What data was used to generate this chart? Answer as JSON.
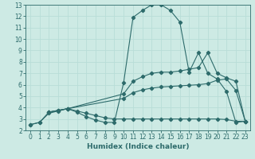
{
  "xlabel": "Humidex (Indice chaleur)",
  "ylabel": "",
  "bg_color": "#cdeae4",
  "line_color": "#2d6b6b",
  "grid_color": "#b8ddd8",
  "xlim": [
    -0.5,
    23.5
  ],
  "ylim": [
    2,
    13
  ],
  "xticks": [
    0,
    1,
    2,
    3,
    4,
    5,
    6,
    7,
    8,
    9,
    10,
    11,
    12,
    13,
    14,
    15,
    16,
    17,
    18,
    19,
    20,
    21,
    22,
    23
  ],
  "yticks": [
    2,
    3,
    4,
    5,
    6,
    7,
    8,
    9,
    10,
    11,
    12,
    13
  ],
  "lines": [
    {
      "x": [
        0,
        1,
        2,
        3,
        4,
        5,
        6,
        7,
        8,
        9,
        10,
        11,
        12,
        13,
        14,
        15,
        16,
        17,
        18,
        19,
        20,
        21,
        22,
        23
      ],
      "y": [
        2.5,
        2.7,
        3.6,
        3.75,
        3.9,
        3.6,
        3.2,
        2.9,
        2.7,
        2.7,
        6.2,
        11.9,
        12.5,
        13.0,
        13.0,
        12.5,
        11.5,
        7.1,
        8.8,
        7.0,
        6.5,
        5.4,
        2.7,
        2.8
      ]
    },
    {
      "x": [
        2,
        3,
        4,
        10,
        11,
        12,
        13,
        14,
        15,
        16,
        17,
        18,
        19,
        20,
        21,
        22,
        23
      ],
      "y": [
        3.6,
        3.75,
        3.9,
        5.2,
        6.3,
        6.7,
        7.0,
        7.1,
        7.1,
        7.2,
        7.35,
        7.5,
        8.8,
        7.0,
        6.6,
        6.3,
        2.8
      ]
    },
    {
      "x": [
        2,
        3,
        4,
        10,
        11,
        12,
        13,
        14,
        15,
        16,
        17,
        18,
        19,
        20,
        21,
        22,
        23
      ],
      "y": [
        3.6,
        3.75,
        3.9,
        4.8,
        5.3,
        5.55,
        5.7,
        5.8,
        5.85,
        5.9,
        5.95,
        6.0,
        6.1,
        6.4,
        6.5,
        5.5,
        2.8
      ]
    },
    {
      "x": [
        0,
        1,
        2,
        3,
        4,
        5,
        6,
        7,
        8,
        9,
        10,
        11,
        12,
        13,
        14,
        15,
        16,
        17,
        18,
        19,
        20,
        21,
        22,
        23
      ],
      "y": [
        2.5,
        2.7,
        3.5,
        3.7,
        3.9,
        3.7,
        3.5,
        3.3,
        3.1,
        3.0,
        3.0,
        3.0,
        3.0,
        3.0,
        3.0,
        3.0,
        3.0,
        3.0,
        3.0,
        3.0,
        3.0,
        2.95,
        2.8,
        2.8
      ]
    }
  ]
}
